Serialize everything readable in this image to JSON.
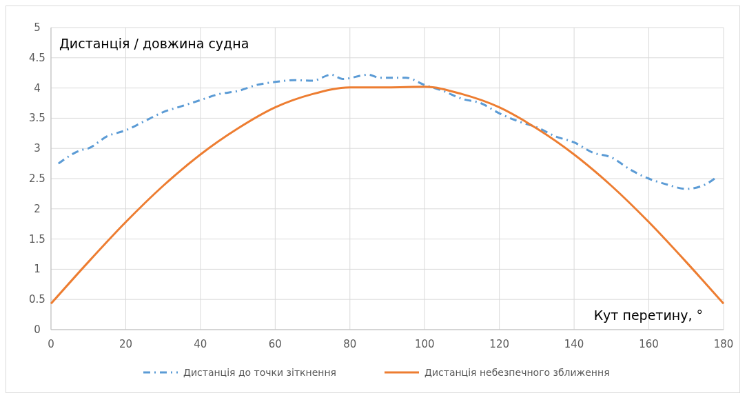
{
  "chart_data": {
    "type": "line",
    "ylabel": "Дистанція / довжина судна",
    "xlabel": "Кут перетину, °",
    "xlim": [
      0,
      180
    ],
    "xticks": [
      0,
      20,
      40,
      60,
      80,
      100,
      120,
      140,
      160,
      180
    ],
    "ylim": [
      0,
      5
    ],
    "yticks": [
      0,
      0.5,
      1,
      1.5,
      2,
      2.5,
      3,
      3.5,
      4,
      4.5,
      5
    ],
    "grid": true,
    "legend": "bottom",
    "series": [
      {
        "name": "Дистанція до точки зіткнення",
        "color": "#5b9bd5",
        "line_style": "dashdot",
        "x": [
          2,
          8,
          10,
          15,
          20,
          25,
          30,
          35,
          40,
          45,
          50,
          55,
          60,
          65,
          70,
          75,
          78,
          85,
          88,
          95,
          100,
          105,
          110,
          115,
          120,
          125,
          130,
          135,
          140,
          145,
          150,
          155,
          160,
          165,
          170,
          175,
          178
        ],
        "values": [
          2.75,
          2.97,
          3.0,
          3.2,
          3.3,
          3.45,
          3.6,
          3.7,
          3.8,
          3.9,
          3.95,
          4.05,
          4.1,
          4.13,
          4.12,
          4.22,
          4.15,
          4.22,
          4.17,
          4.17,
          4.05,
          3.95,
          3.82,
          3.75,
          3.58,
          3.45,
          3.35,
          3.2,
          3.1,
          2.93,
          2.85,
          2.65,
          2.5,
          2.4,
          2.33,
          2.4,
          2.52
        ]
      },
      {
        "name": "Дистанція небезпечного зближення",
        "color": "#ed7d31",
        "line_style": "solid",
        "x": [
          0,
          10,
          20,
          30,
          40,
          50,
          60,
          70,
          80,
          90,
          100,
          110,
          120,
          130,
          140,
          150,
          160,
          170,
          180
        ],
        "values": [
          0.43,
          1.12,
          1.78,
          2.38,
          2.9,
          3.33,
          3.68,
          3.9,
          4.01,
          4.01,
          4.02,
          3.9,
          3.68,
          3.33,
          2.9,
          2.38,
          1.78,
          1.12,
          0.43
        ]
      }
    ]
  }
}
